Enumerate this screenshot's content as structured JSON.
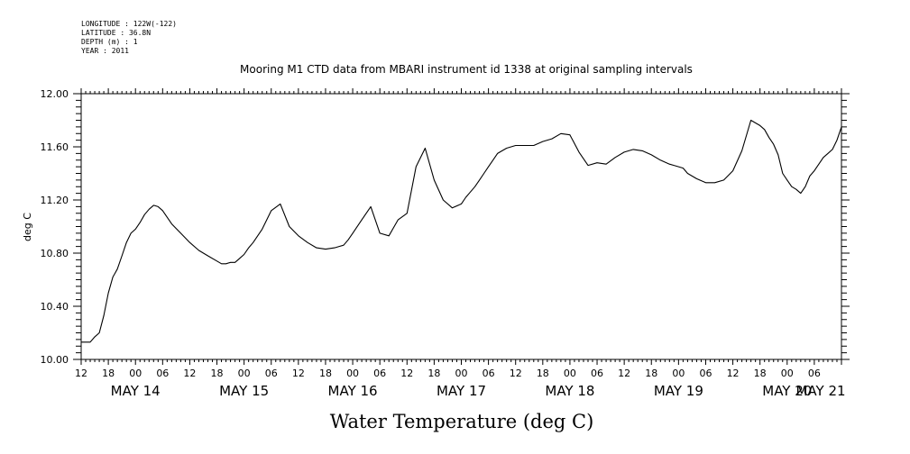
{
  "header": {
    "longitude": "LONGITUDE : 122W(-122)",
    "latitude": "LATITUDE : 36.8N",
    "depth": "DEPTH (m) : 1",
    "year": "YEAR : 2011"
  },
  "chart_data": {
    "type": "line",
    "title": "Mooring M1 CTD data from MBARI instrument id 1338 at original sampling intervals",
    "xlabel": "Water Temperature (deg C)",
    "ylabel": "deg C",
    "ylim": [
      10.0,
      12.0
    ],
    "xlim_hours": [
      0,
      168
    ],
    "y_ticks": [
      "10.00",
      "10.40",
      "10.80",
      "11.20",
      "11.60",
      "12.00"
    ],
    "x_hour_ticks": [
      "12",
      "18",
      "00",
      "06",
      "12",
      "18",
      "00",
      "06",
      "12",
      "18",
      "00",
      "06",
      "12",
      "18",
      "00",
      "06",
      "12",
      "18",
      "00",
      "06",
      "12",
      "18",
      "00",
      "06",
      "12",
      "18",
      "00",
      "06"
    ],
    "x_day_labels": [
      "MAY 14",
      "MAY 15",
      "MAY 16",
      "MAY 17",
      "MAY 18",
      "MAY 19",
      "MAY 20",
      "MAY 21"
    ],
    "series": [
      {
        "x": [
          0,
          2,
          3,
          4,
          5,
          6,
          7,
          8,
          9,
          10,
          11,
          12,
          13,
          14,
          15,
          16,
          17,
          18,
          20,
          22,
          24,
          26,
          28,
          30,
          31,
          32,
          33,
          34,
          35,
          36,
          37,
          38,
          40,
          42,
          44,
          46,
          48,
          50,
          52,
          54,
          56,
          57,
          58,
          59,
          60,
          62,
          64,
          66,
          68,
          70,
          72,
          74,
          76,
          78,
          80,
          82,
          84,
          85,
          86,
          87,
          88,
          89,
          90,
          91,
          92,
          93,
          94,
          95,
          96,
          96.5,
          97,
          98,
          99,
          100,
          102,
          104,
          106,
          108,
          110,
          112,
          114,
          116,
          118,
          120,
          122,
          124,
          126,
          128,
          130,
          131,
          132,
          133,
          134,
          136,
          138,
          140,
          142,
          144,
          146,
          148,
          150,
          151,
          152,
          153,
          154,
          155,
          156,
          157,
          158,
          159,
          160,
          161,
          162,
          163,
          164,
          165,
          166,
          167,
          168
        ],
        "y": [
          10.13,
          10.13,
          10.17,
          10.2,
          10.33,
          10.5,
          10.62,
          10.68,
          10.78,
          10.88,
          10.95,
          10.98,
          11.03,
          11.09,
          11.13,
          11.16,
          11.15,
          11.12,
          11.02,
          10.95,
          10.88,
          10.82,
          10.78,
          10.74,
          10.72,
          10.72,
          10.73,
          10.73,
          10.76,
          10.79,
          10.84,
          10.88,
          10.98,
          11.12,
          11.17,
          11.0,
          10.93,
          10.88,
          10.84,
          10.83,
          10.84,
          10.85,
          10.86,
          10.9,
          10.95,
          11.05,
          11.15,
          10.95,
          10.93,
          11.05,
          11.1,
          11.45,
          11.59,
          11.35,
          11.2,
          11.14,
          11.17,
          11.22,
          11.26,
          11.3,
          11.35,
          11.4,
          11.45,
          11.5,
          11.55,
          11.57,
          11.59,
          11.6,
          11.61,
          11.61,
          11.61,
          11.61,
          11.61,
          11.61,
          11.64,
          11.66,
          11.7,
          11.69,
          11.56,
          11.46,
          11.48,
          11.47,
          11.52,
          11.56,
          11.58,
          11.57,
          11.54,
          11.5,
          11.47,
          11.46,
          11.45,
          11.44,
          11.4,
          11.36,
          11.33,
          11.33,
          11.35,
          11.42,
          11.57,
          11.8,
          11.76,
          11.73,
          11.67,
          11.62,
          11.54,
          11.4,
          11.35,
          11.3,
          11.28,
          11.25,
          11.3,
          11.38,
          11.42,
          11.47,
          11.52,
          11.55,
          11.58,
          11.65,
          11.75
        ]
      }
    ]
  }
}
